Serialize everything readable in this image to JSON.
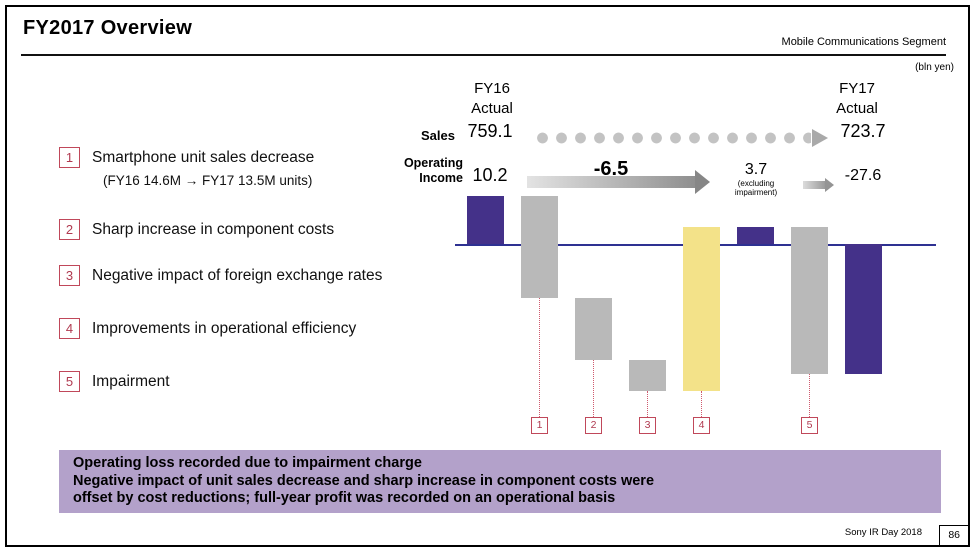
{
  "header": {
    "title": "FY2017 Overview",
    "segment": "Mobile Communications Segment",
    "unit_note": "(bln yen)"
  },
  "column_headers": {
    "fy16_line1": "FY16",
    "fy16_line2": "Actual",
    "fy17_line1": "FY17",
    "fy17_line2": "Actual"
  },
  "sales_row": {
    "label": "Sales",
    "fy16_value": "759.1",
    "fy17_value": "723.7"
  },
  "oi_row": {
    "label_line1": "Operating",
    "label_line2": "Income",
    "fy16_value": "10.2",
    "bridge_delta": "-6.5",
    "excl_value": "3.7",
    "excl_note_line1": "(excluding",
    "excl_note_line2": "impairment)",
    "fy17_value": "-27.6"
  },
  "legend": {
    "items": [
      {
        "num": "1",
        "text": "Smartphone unit sales decrease",
        "sub": "(FY16 14.6M → FY17 13.5M units)"
      },
      {
        "num": "2",
        "text": "Sharp increase in component costs"
      },
      {
        "num": "3",
        "text": "Negative impact of foreign exchange rates"
      },
      {
        "num": "4",
        "text": "Improvements in operational efficiency"
      },
      {
        "num": "5",
        "text": "Impairment"
      }
    ]
  },
  "markers": [
    "1",
    "2",
    "3",
    "4",
    "5"
  ],
  "summary": {
    "line1": "Operating loss recorded due to impairment charge",
    "line2": "Negative impact of unit sales decrease and sharp increase in component costs were",
    "line3": "offset by cost reductions; full-year profit was recorded on an operational basis"
  },
  "footer": {
    "source": "Sony IR Day 2018",
    "page": "86"
  },
  "colors": {
    "bar_purple": "#443189",
    "bar_gray": "#b9b9b9",
    "bar_yellow": "#f3e289",
    "marker_red": "#c0485a",
    "summary_background": "#b3a1ca",
    "baseline_navy": "#2e3192",
    "arrow_gray": "#9a9a9a"
  },
  "chart_data": {
    "type": "bar",
    "subtype": "waterfall",
    "title": "FY16 to FY17 operating income bridge",
    "unit": "bln yen",
    "ylim": [
      -35,
      15
    ],
    "sales": {
      "FY16 Actual": 759.1,
      "FY17 Actual": 723.7
    },
    "operating_income": {
      "FY16 Actual": 10.2,
      "change_excluding_impairment": -6.5,
      "FY17 excluding impairment": 3.7,
      "FY17 Actual": -27.6
    },
    "bars": [
      {
        "label": "FY16 Actual operating income",
        "start": 0,
        "end": 10.2,
        "value": 10.2,
        "color": "purple"
      },
      {
        "label": "1 Smartphone unit sales decrease",
        "start": 10.2,
        "end": -11.5,
        "value": -21.7,
        "color": "gray"
      },
      {
        "label": "2 Sharp increase in component costs",
        "start": -11.5,
        "end": -24.6,
        "value": -13.1,
        "color": "gray"
      },
      {
        "label": "3 Negative impact of foreign exchange rates",
        "start": -24.6,
        "end": -31.3,
        "value": -6.7,
        "color": "gray"
      },
      {
        "label": "4 Improvements in operational efficiency",
        "start": -31.3,
        "end": 3.7,
        "value": 35.0,
        "color": "yellow"
      },
      {
        "label": "FY17 operating income excluding impairment",
        "start": 0,
        "end": 3.7,
        "value": 3.7,
        "color": "purple"
      },
      {
        "label": "5 Impairment",
        "start": 3.7,
        "end": -27.6,
        "value": -31.3,
        "color": "gray"
      },
      {
        "label": "FY17 Actual operating income",
        "start": 0,
        "end": -27.6,
        "value": -27.6,
        "color": "purple"
      }
    ]
  }
}
